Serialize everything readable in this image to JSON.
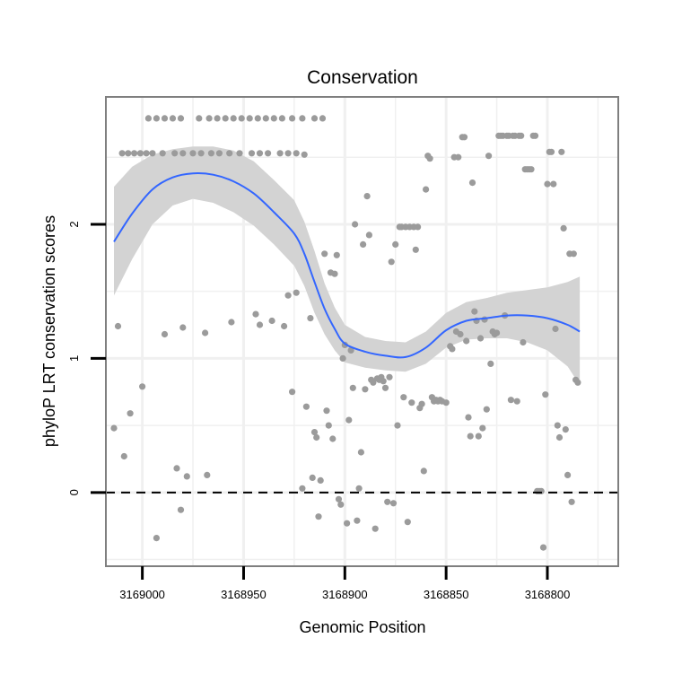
{
  "chart_data": {
    "type": "scatter",
    "title": "Conservation",
    "xlabel": "Genomic Position",
    "ylabel": "phyloP LRT conservation scores",
    "x_reversed": true,
    "xlim": [
      3169018,
      3168765
    ],
    "ylim": [
      -0.55,
      2.95
    ],
    "x_ticks": [
      3169000,
      3168950,
      3168900,
      3168850,
      3168800
    ],
    "x_tick_labels": [
      "3169000",
      "3168950",
      "3168900",
      "3168850",
      "3168800"
    ],
    "y_ticks": [
      0,
      1,
      2
    ],
    "y_tick_labels": [
      "0",
      "1",
      "2"
    ],
    "reference_line": {
      "y": 0,
      "style": "dashed"
    },
    "colors": {
      "points": "#9b9b9b",
      "smooth": "#3366ff",
      "band": "#d3d3d3",
      "frame": "#7f7f7f",
      "grid": "#f0f0f0"
    },
    "series": [
      {
        "name": "observed scores",
        "points": [
          [
            3169010,
            2.53
          ],
          [
            3169007,
            2.53
          ],
          [
            3169004,
            2.53
          ],
          [
            3169001,
            2.53
          ],
          [
            3168998,
            2.53
          ],
          [
            3168995,
            2.53
          ],
          [
            3168990,
            2.53
          ],
          [
            3168984,
            2.53
          ],
          [
            3168980,
            2.53
          ],
          [
            3168975,
            2.53
          ],
          [
            3168971,
            2.53
          ],
          [
            3168966,
            2.53
          ],
          [
            3168962,
            2.53
          ],
          [
            3168957,
            2.53
          ],
          [
            3168952,
            2.53
          ],
          [
            3168946,
            2.53
          ],
          [
            3168942,
            2.53
          ],
          [
            3168938,
            2.53
          ],
          [
            3168932,
            2.53
          ],
          [
            3168928,
            2.53
          ],
          [
            3168924,
            2.53
          ],
          [
            3168997,
            2.79
          ],
          [
            3168993,
            2.79
          ],
          [
            3168989,
            2.79
          ],
          [
            3168985,
            2.79
          ],
          [
            3168981,
            2.79
          ],
          [
            3168972,
            2.79
          ],
          [
            3168967,
            2.79
          ],
          [
            3168963,
            2.79
          ],
          [
            3168959,
            2.79
          ],
          [
            3168955,
            2.79
          ],
          [
            3168951,
            2.79
          ],
          [
            3168947,
            2.79
          ],
          [
            3168943,
            2.79
          ],
          [
            3168939,
            2.79
          ],
          [
            3168935,
            2.79
          ],
          [
            3168931,
            2.79
          ],
          [
            3168926,
            2.79
          ],
          [
            3168921,
            2.79
          ],
          [
            3168915,
            2.79
          ],
          [
            3168911,
            2.79
          ],
          [
            3169014,
            0.48
          ],
          [
            3169012,
            1.24
          ],
          [
            3169009,
            0.27
          ],
          [
            3169006,
            0.59
          ],
          [
            3169000,
            0.79
          ],
          [
            3168993,
            -0.34
          ],
          [
            3168989,
            1.18
          ],
          [
            3168983,
            0.18
          ],
          [
            3168981,
            -0.13
          ],
          [
            3168980,
            1.23
          ],
          [
            3168978,
            0.12
          ],
          [
            3168969,
            1.19
          ],
          [
            3168968,
            0.13
          ],
          [
            3168956,
            1.27
          ],
          [
            3168944,
            1.33
          ],
          [
            3168942,
            1.25
          ],
          [
            3168936,
            1.28
          ],
          [
            3168930,
            1.24
          ],
          [
            3168928,
            1.47
          ],
          [
            3168926,
            0.75
          ],
          [
            3168924,
            1.49
          ],
          [
            3168921,
            0.03
          ],
          [
            3168920,
            2.52
          ],
          [
            3168919,
            0.64
          ],
          [
            3168917,
            1.3
          ],
          [
            3168916,
            0.11
          ],
          [
            3168915,
            0.45
          ],
          [
            3168914,
            0.41
          ],
          [
            3168913,
            -0.18
          ],
          [
            3168912,
            0.09
          ],
          [
            3168910,
            1.78
          ],
          [
            3168909,
            0.61
          ],
          [
            3168908,
            0.5
          ],
          [
            3168907,
            1.64
          ],
          [
            3168906,
            0.4
          ],
          [
            3168905,
            1.63
          ],
          [
            3168904,
            1.77
          ],
          [
            3168903,
            -0.05
          ],
          [
            3168902,
            -0.09
          ],
          [
            3168901,
            1.0
          ],
          [
            3168900,
            1.1
          ],
          [
            3168899,
            -0.23
          ],
          [
            3168898,
            0.54
          ],
          [
            3168897,
            1.06
          ],
          [
            3168896,
            0.78
          ],
          [
            3168895,
            2.0
          ],
          [
            3168894,
            -0.21
          ],
          [
            3168893,
            0.03
          ],
          [
            3168892,
            0.3
          ],
          [
            3168891,
            1.85
          ],
          [
            3168890,
            0.77
          ],
          [
            3168889,
            2.21
          ],
          [
            3168888,
            1.92
          ],
          [
            3168887,
            0.84
          ],
          [
            3168886,
            0.82
          ],
          [
            3168885,
            -0.27
          ],
          [
            3168884,
            0.85
          ],
          [
            3168883,
            0.84
          ],
          [
            3168882,
            0.86
          ],
          [
            3168881,
            0.83
          ],
          [
            3168880,
            0.78
          ],
          [
            3168879,
            -0.07
          ],
          [
            3168878,
            0.86
          ],
          [
            3168877,
            1.72
          ],
          [
            3168876,
            -0.08
          ],
          [
            3168875,
            1.85
          ],
          [
            3168874,
            0.5
          ],
          [
            3168873,
            1.98
          ],
          [
            3168872,
            1.98
          ],
          [
            3168871,
            0.71
          ],
          [
            3168870,
            1.98
          ],
          [
            3168869,
            -0.22
          ],
          [
            3168868,
            1.98
          ],
          [
            3168867,
            0.67
          ],
          [
            3168866,
            1.98
          ],
          [
            3168865,
            1.81
          ],
          [
            3168864,
            1.98
          ],
          [
            3168863,
            0.63
          ],
          [
            3168862,
            0.66
          ],
          [
            3168861,
            0.16
          ],
          [
            3168860,
            2.26
          ],
          [
            3168859,
            2.51
          ],
          [
            3168858,
            2.49
          ],
          [
            3168857,
            0.71
          ],
          [
            3168856,
            0.68
          ],
          [
            3168855,
            0.69
          ],
          [
            3168854,
            0.68
          ],
          [
            3168853,
            0.69
          ],
          [
            3168852,
            0.68
          ],
          [
            3168850,
            0.67
          ],
          [
            3168848,
            1.09
          ],
          [
            3168847,
            1.07
          ],
          [
            3168846,
            2.5
          ],
          [
            3168845,
            1.2
          ],
          [
            3168844,
            2.5
          ],
          [
            3168843,
            1.18
          ],
          [
            3168842,
            2.65
          ],
          [
            3168841,
            2.65
          ],
          [
            3168840,
            1.13
          ],
          [
            3168839,
            0.56
          ],
          [
            3168838,
            0.42
          ],
          [
            3168837,
            2.31
          ],
          [
            3168836,
            1.35
          ],
          [
            3168835,
            1.28
          ],
          [
            3168834,
            0.42
          ],
          [
            3168833,
            1.15
          ],
          [
            3168832,
            0.48
          ],
          [
            3168831,
            1.29
          ],
          [
            3168830,
            0.62
          ],
          [
            3168829,
            2.51
          ],
          [
            3168828,
            0.96
          ],
          [
            3168827,
            1.2
          ],
          [
            3168826,
            1.18
          ],
          [
            3168825,
            1.19
          ],
          [
            3168824,
            2.66
          ],
          [
            3168823,
            2.66
          ],
          [
            3168822,
            2.66
          ],
          [
            3168821,
            1.32
          ],
          [
            3168820,
            2.66
          ],
          [
            3168819,
            2.66
          ],
          [
            3168818,
            0.69
          ],
          [
            3168817,
            2.66
          ],
          [
            3168816,
            2.66
          ],
          [
            3168815,
            0.68
          ],
          [
            3168814,
            2.66
          ],
          [
            3168813,
            2.66
          ],
          [
            3168812,
            1.12
          ],
          [
            3168811,
            2.41
          ],
          [
            3168810,
            2.41
          ],
          [
            3168809,
            2.41
          ],
          [
            3168808,
            2.41
          ],
          [
            3168807,
            2.66
          ],
          [
            3168806,
            2.66
          ],
          [
            3168805,
            0.01
          ],
          [
            3168804,
            0.01
          ],
          [
            3168803,
            0.01
          ],
          [
            3168802,
            -0.41
          ],
          [
            3168801,
            0.73
          ],
          [
            3168800,
            2.3
          ],
          [
            3168799,
            2.54
          ],
          [
            3168798,
            2.54
          ],
          [
            3168797,
            2.3
          ],
          [
            3168796,
            1.22
          ],
          [
            3168795,
            0.5
          ],
          [
            3168794,
            0.41
          ],
          [
            3168793,
            2.54
          ],
          [
            3168792,
            1.97
          ],
          [
            3168791,
            0.47
          ],
          [
            3168790,
            0.13
          ],
          [
            3168789,
            1.78
          ],
          [
            3168788,
            -0.07
          ],
          [
            3168787,
            1.78
          ],
          [
            3168786,
            0.84
          ],
          [
            3168785,
            0.82
          ]
        ]
      },
      {
        "name": "loess smooth",
        "curve": [
          [
            3169014,
            1.87
          ],
          [
            3169005,
            2.08
          ],
          [
            3168995,
            2.26
          ],
          [
            3168985,
            2.35
          ],
          [
            3168975,
            2.38
          ],
          [
            3168965,
            2.37
          ],
          [
            3168955,
            2.32
          ],
          [
            3168945,
            2.23
          ],
          [
            3168935,
            2.09
          ],
          [
            3168925,
            1.93
          ],
          [
            3168920,
            1.78
          ],
          [
            3168915,
            1.57
          ],
          [
            3168910,
            1.37
          ],
          [
            3168905,
            1.22
          ],
          [
            3168900,
            1.11
          ],
          [
            3168890,
            1.05
          ],
          [
            3168880,
            1.02
          ],
          [
            3168870,
            1.01
          ],
          [
            3168860,
            1.08
          ],
          [
            3168850,
            1.21
          ],
          [
            3168840,
            1.28
          ],
          [
            3168830,
            1.3
          ],
          [
            3168820,
            1.32
          ],
          [
            3168810,
            1.32
          ],
          [
            3168800,
            1.3
          ],
          [
            3168790,
            1.25
          ],
          [
            3168784,
            1.2
          ]
        ],
        "band_upper": [
          [
            3169014,
            2.28
          ],
          [
            3169005,
            2.43
          ],
          [
            3168995,
            2.52
          ],
          [
            3168985,
            2.56
          ],
          [
            3168975,
            2.58
          ],
          [
            3168965,
            2.58
          ],
          [
            3168955,
            2.55
          ],
          [
            3168945,
            2.47
          ],
          [
            3168935,
            2.33
          ],
          [
            3168925,
            2.18
          ],
          [
            3168920,
            2.02
          ],
          [
            3168915,
            1.8
          ],
          [
            3168910,
            1.56
          ],
          [
            3168905,
            1.38
          ],
          [
            3168900,
            1.25
          ],
          [
            3168890,
            1.16
          ],
          [
            3168880,
            1.13
          ],
          [
            3168870,
            1.12
          ],
          [
            3168860,
            1.2
          ],
          [
            3168850,
            1.34
          ],
          [
            3168840,
            1.42
          ],
          [
            3168830,
            1.45
          ],
          [
            3168820,
            1.49
          ],
          [
            3168810,
            1.51
          ],
          [
            3168800,
            1.53
          ],
          [
            3168790,
            1.57
          ],
          [
            3168784,
            1.61
          ]
        ],
        "band_lower": [
          [
            3169014,
            1.47
          ],
          [
            3169005,
            1.74
          ],
          [
            3168995,
            2.0
          ],
          [
            3168985,
            2.14
          ],
          [
            3168975,
            2.19
          ],
          [
            3168965,
            2.16
          ],
          [
            3168955,
            2.09
          ],
          [
            3168945,
            1.99
          ],
          [
            3168935,
            1.85
          ],
          [
            3168925,
            1.69
          ],
          [
            3168920,
            1.54
          ],
          [
            3168915,
            1.34
          ],
          [
            3168910,
            1.18
          ],
          [
            3168905,
            1.06
          ],
          [
            3168900,
            0.97
          ],
          [
            3168890,
            0.93
          ],
          [
            3168880,
            0.91
          ],
          [
            3168870,
            0.9
          ],
          [
            3168860,
            0.96
          ],
          [
            3168850,
            1.08
          ],
          [
            3168840,
            1.14
          ],
          [
            3168830,
            1.15
          ],
          [
            3168820,
            1.15
          ],
          [
            3168810,
            1.12
          ],
          [
            3168800,
            1.06
          ],
          [
            3168790,
            0.94
          ],
          [
            3168784,
            0.8
          ]
        ]
      }
    ]
  }
}
